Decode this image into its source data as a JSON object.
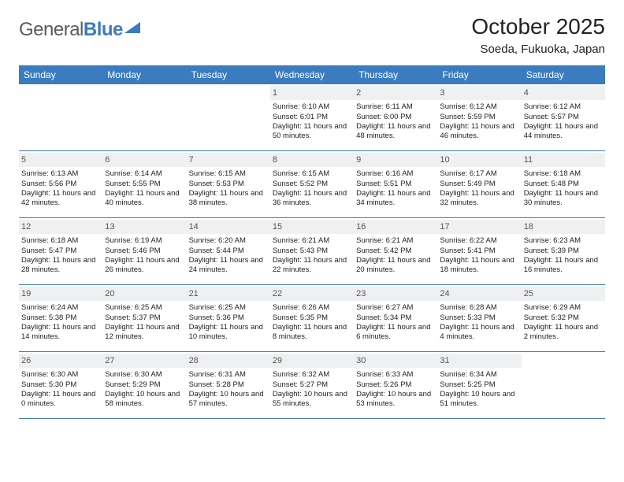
{
  "logo": {
    "word1": "General",
    "word2": "Blue"
  },
  "title": "October 2025",
  "location": "Soeda, Fukuoka, Japan",
  "colors": {
    "header_bg": "#3b7bbf",
    "header_text": "#ffffff",
    "daynum_bg": "#eef0f2",
    "week_border": "#3b7bbf",
    "text": "#222222"
  },
  "weekdays": [
    "Sunday",
    "Monday",
    "Tuesday",
    "Wednesday",
    "Thursday",
    "Friday",
    "Saturday"
  ],
  "weeks": [
    [
      {
        "n": "",
        "sr": "",
        "ss": "",
        "dl": ""
      },
      {
        "n": "",
        "sr": "",
        "ss": "",
        "dl": ""
      },
      {
        "n": "",
        "sr": "",
        "ss": "",
        "dl": ""
      },
      {
        "n": "1",
        "sr": "Sunrise: 6:10 AM",
        "ss": "Sunset: 6:01 PM",
        "dl": "Daylight: 11 hours and 50 minutes."
      },
      {
        "n": "2",
        "sr": "Sunrise: 6:11 AM",
        "ss": "Sunset: 6:00 PM",
        "dl": "Daylight: 11 hours and 48 minutes."
      },
      {
        "n": "3",
        "sr": "Sunrise: 6:12 AM",
        "ss": "Sunset: 5:59 PM",
        "dl": "Daylight: 11 hours and 46 minutes."
      },
      {
        "n": "4",
        "sr": "Sunrise: 6:12 AM",
        "ss": "Sunset: 5:57 PM",
        "dl": "Daylight: 11 hours and 44 minutes."
      }
    ],
    [
      {
        "n": "5",
        "sr": "Sunrise: 6:13 AM",
        "ss": "Sunset: 5:56 PM",
        "dl": "Daylight: 11 hours and 42 minutes."
      },
      {
        "n": "6",
        "sr": "Sunrise: 6:14 AM",
        "ss": "Sunset: 5:55 PM",
        "dl": "Daylight: 11 hours and 40 minutes."
      },
      {
        "n": "7",
        "sr": "Sunrise: 6:15 AM",
        "ss": "Sunset: 5:53 PM",
        "dl": "Daylight: 11 hours and 38 minutes."
      },
      {
        "n": "8",
        "sr": "Sunrise: 6:15 AM",
        "ss": "Sunset: 5:52 PM",
        "dl": "Daylight: 11 hours and 36 minutes."
      },
      {
        "n": "9",
        "sr": "Sunrise: 6:16 AM",
        "ss": "Sunset: 5:51 PM",
        "dl": "Daylight: 11 hours and 34 minutes."
      },
      {
        "n": "10",
        "sr": "Sunrise: 6:17 AM",
        "ss": "Sunset: 5:49 PM",
        "dl": "Daylight: 11 hours and 32 minutes."
      },
      {
        "n": "11",
        "sr": "Sunrise: 6:18 AM",
        "ss": "Sunset: 5:48 PM",
        "dl": "Daylight: 11 hours and 30 minutes."
      }
    ],
    [
      {
        "n": "12",
        "sr": "Sunrise: 6:18 AM",
        "ss": "Sunset: 5:47 PM",
        "dl": "Daylight: 11 hours and 28 minutes."
      },
      {
        "n": "13",
        "sr": "Sunrise: 6:19 AM",
        "ss": "Sunset: 5:46 PM",
        "dl": "Daylight: 11 hours and 26 minutes."
      },
      {
        "n": "14",
        "sr": "Sunrise: 6:20 AM",
        "ss": "Sunset: 5:44 PM",
        "dl": "Daylight: 11 hours and 24 minutes."
      },
      {
        "n": "15",
        "sr": "Sunrise: 6:21 AM",
        "ss": "Sunset: 5:43 PM",
        "dl": "Daylight: 11 hours and 22 minutes."
      },
      {
        "n": "16",
        "sr": "Sunrise: 6:21 AM",
        "ss": "Sunset: 5:42 PM",
        "dl": "Daylight: 11 hours and 20 minutes."
      },
      {
        "n": "17",
        "sr": "Sunrise: 6:22 AM",
        "ss": "Sunset: 5:41 PM",
        "dl": "Daylight: 11 hours and 18 minutes."
      },
      {
        "n": "18",
        "sr": "Sunrise: 6:23 AM",
        "ss": "Sunset: 5:39 PM",
        "dl": "Daylight: 11 hours and 16 minutes."
      }
    ],
    [
      {
        "n": "19",
        "sr": "Sunrise: 6:24 AM",
        "ss": "Sunset: 5:38 PM",
        "dl": "Daylight: 11 hours and 14 minutes."
      },
      {
        "n": "20",
        "sr": "Sunrise: 6:25 AM",
        "ss": "Sunset: 5:37 PM",
        "dl": "Daylight: 11 hours and 12 minutes."
      },
      {
        "n": "21",
        "sr": "Sunrise: 6:25 AM",
        "ss": "Sunset: 5:36 PM",
        "dl": "Daylight: 11 hours and 10 minutes."
      },
      {
        "n": "22",
        "sr": "Sunrise: 6:26 AM",
        "ss": "Sunset: 5:35 PM",
        "dl": "Daylight: 11 hours and 8 minutes."
      },
      {
        "n": "23",
        "sr": "Sunrise: 6:27 AM",
        "ss": "Sunset: 5:34 PM",
        "dl": "Daylight: 11 hours and 6 minutes."
      },
      {
        "n": "24",
        "sr": "Sunrise: 6:28 AM",
        "ss": "Sunset: 5:33 PM",
        "dl": "Daylight: 11 hours and 4 minutes."
      },
      {
        "n": "25",
        "sr": "Sunrise: 6:29 AM",
        "ss": "Sunset: 5:32 PM",
        "dl": "Daylight: 11 hours and 2 minutes."
      }
    ],
    [
      {
        "n": "26",
        "sr": "Sunrise: 6:30 AM",
        "ss": "Sunset: 5:30 PM",
        "dl": "Daylight: 11 hours and 0 minutes."
      },
      {
        "n": "27",
        "sr": "Sunrise: 6:30 AM",
        "ss": "Sunset: 5:29 PM",
        "dl": "Daylight: 10 hours and 58 minutes."
      },
      {
        "n": "28",
        "sr": "Sunrise: 6:31 AM",
        "ss": "Sunset: 5:28 PM",
        "dl": "Daylight: 10 hours and 57 minutes."
      },
      {
        "n": "29",
        "sr": "Sunrise: 6:32 AM",
        "ss": "Sunset: 5:27 PM",
        "dl": "Daylight: 10 hours and 55 minutes."
      },
      {
        "n": "30",
        "sr": "Sunrise: 6:33 AM",
        "ss": "Sunset: 5:26 PM",
        "dl": "Daylight: 10 hours and 53 minutes."
      },
      {
        "n": "31",
        "sr": "Sunrise: 6:34 AM",
        "ss": "Sunset: 5:25 PM",
        "dl": "Daylight: 10 hours and 51 minutes."
      },
      {
        "n": "",
        "sr": "",
        "ss": "",
        "dl": ""
      }
    ]
  ]
}
